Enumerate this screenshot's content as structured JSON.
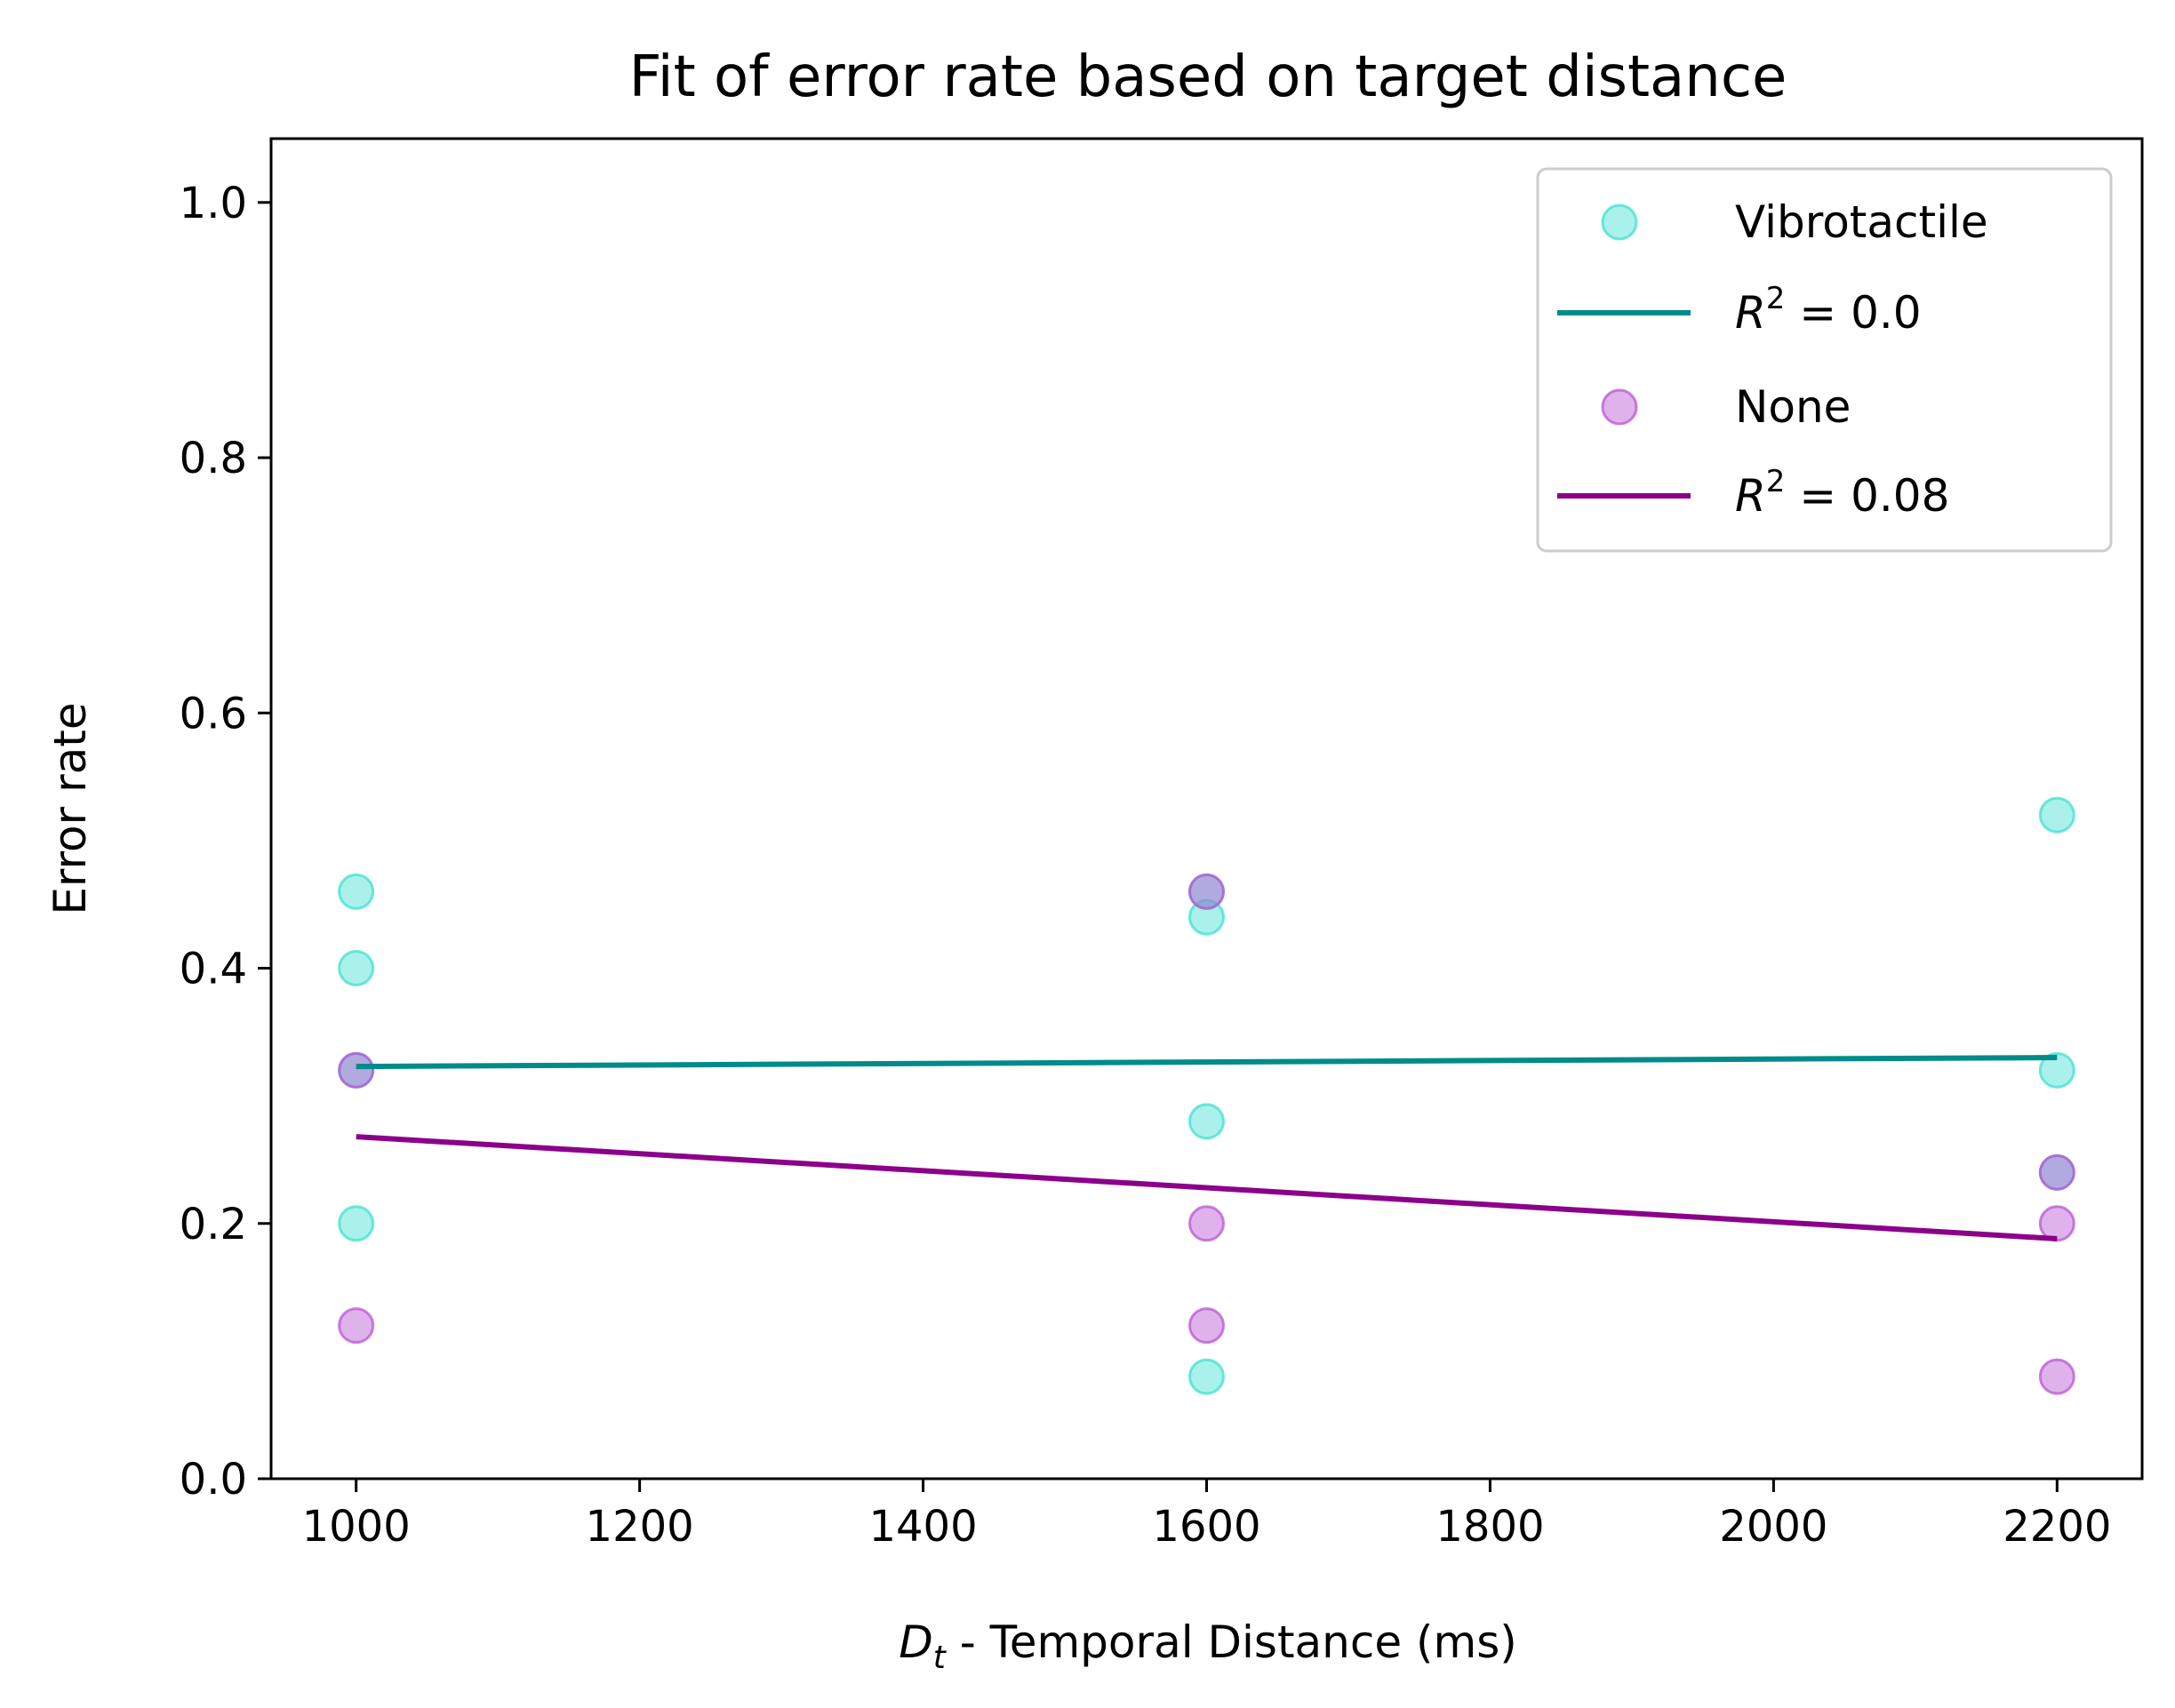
{
  "chart_data": {
    "type": "scatter",
    "title": "Fit of error rate based on target distance",
    "xlabel": {
      "symbol": "D",
      "subscript": "t",
      "text": " - Temporal Distance (ms)"
    },
    "ylabel": "Error rate",
    "xlim": [
      940,
      2260
    ],
    "ylim": [
      0.0,
      1.05
    ],
    "x_ticks": [
      1000,
      1200,
      1400,
      1600,
      1800,
      2000,
      2200
    ],
    "y_ticks": [
      0.0,
      0.2,
      0.4,
      0.6,
      0.8,
      1.0
    ],
    "x_tick_labels": [
      "1000",
      "1200",
      "1400",
      "1600",
      "1800",
      "2000",
      "2200"
    ],
    "y_tick_labels": [
      "0.0",
      "0.2",
      "0.4",
      "0.6",
      "0.8",
      "1.0"
    ],
    "grid": false,
    "legend_position": "top-right",
    "series": [
      {
        "name": "Vibrotactile",
        "color": "#40E0D0",
        "x": [
          1000,
          1000,
          1000,
          1000,
          1600,
          1600,
          1600,
          1600,
          2200,
          2200,
          2200
        ],
        "y": [
          0.46,
          0.4,
          0.32,
          0.2,
          0.46,
          0.44,
          0.28,
          0.08,
          0.52,
          0.32,
          0.24
        ],
        "fit": {
          "label_symbol": "R",
          "label_sup": "2",
          "label_text": " = 0.0",
          "color": "#008B8B",
          "x": [
            1000,
            2200
          ],
          "y": [
            0.323,
            0.33
          ]
        }
      },
      {
        "name": "None",
        "color": "#BA55D3",
        "x": [
          1000,
          1000,
          1600,
          1600,
          1600,
          2200,
          2200,
          2200
        ],
        "y": [
          0.32,
          0.12,
          0.46,
          0.2,
          0.12,
          0.24,
          0.2,
          0.08
        ],
        "fit": {
          "label_symbol": "R",
          "label_sup": "2",
          "label_text": " = 0.08",
          "color": "#8B008B",
          "x": [
            1000,
            2200
          ],
          "y": [
            0.268,
            0.188
          ]
        }
      }
    ]
  }
}
